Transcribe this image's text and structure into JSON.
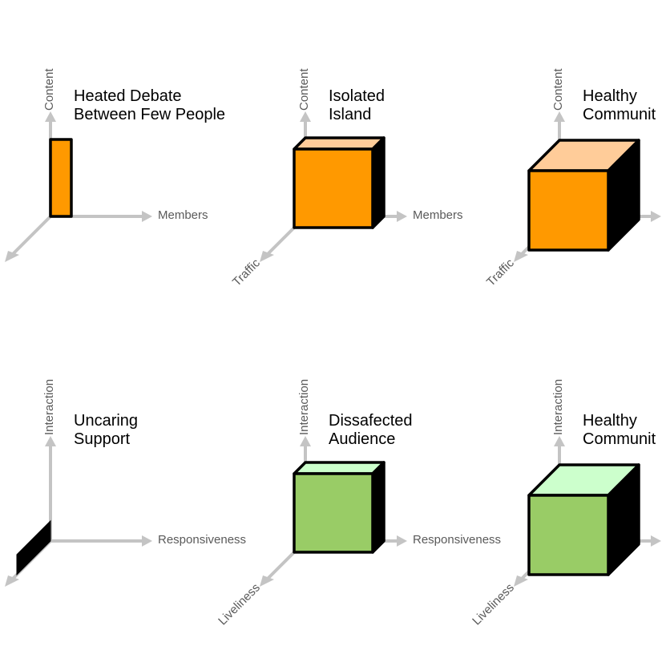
{
  "colors": {
    "axis": "#c4c4c4",
    "label": "#5a5a5a",
    "orange_front": "#ff9900",
    "orange_top": "#ffcc99",
    "green_front": "#99cc66",
    "green_top": "#ccffcc",
    "side": "#000000",
    "outline": "#000000"
  },
  "rows": [
    {
      "axes": {
        "vertical": "Content",
        "horizontal": "Members",
        "depth": "Traffic"
      },
      "color": "orange",
      "panels": [
        {
          "title": [
            "Heated Debate",
            "Between Few People"
          ],
          "shape": "thin-bar",
          "labels_visible": [
            "vertical",
            "horizontal"
          ]
        },
        {
          "title": [
            "Isolated",
            "Island"
          ],
          "shape": "small-cube",
          "labels_visible": [
            "vertical",
            "horizontal",
            "depth"
          ]
        },
        {
          "title": [
            "Healthy",
            "Communit"
          ],
          "shape": "large-cube",
          "labels_visible": [
            "vertical",
            "depth"
          ]
        }
      ]
    },
    {
      "axes": {
        "vertical": "Interaction",
        "horizontal": "Responsiveness",
        "depth": "Liveliness"
      },
      "color": "green",
      "panels": [
        {
          "title": [
            "Uncaring",
            "Support"
          ],
          "shape": "flat-slab",
          "labels_visible": [
            "vertical",
            "horizontal"
          ]
        },
        {
          "title": [
            "Dissafected",
            "Audience"
          ],
          "shape": "small-cube",
          "labels_visible": [
            "vertical",
            "horizontal",
            "depth"
          ]
        },
        {
          "title": [
            "Healthy",
            "Communit"
          ],
          "shape": "large-cube",
          "labels_visible": [
            "vertical",
            "depth"
          ]
        }
      ]
    }
  ]
}
